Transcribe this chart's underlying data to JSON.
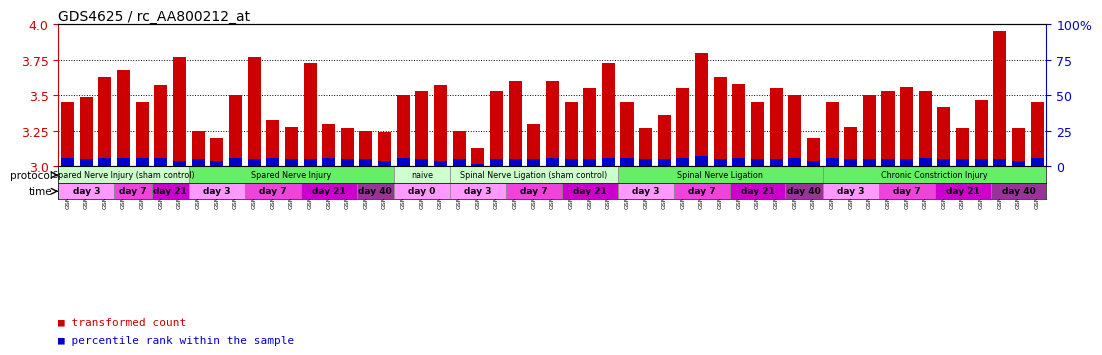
{
  "title": "GDS4625 / rc_AA800212_at",
  "sample_ids": [
    "GSM761261",
    "GSM761262",
    "GSM761264",
    "GSM761265",
    "GSM761266",
    "GSM761267",
    "GSM761268",
    "GSM761269",
    "GSM761250",
    "GSM761292",
    "GSM761253",
    "GSM761254",
    "GSM761255",
    "GSM761256",
    "GSM761257",
    "GSM761258",
    "GSM761259",
    "GSM761260",
    "GSM761246",
    "GSM761247",
    "GSM761248",
    "GSM761237",
    "GSM761238",
    "GSM761239",
    "GSM761240",
    "GSM761241",
    "GSM761242",
    "GSM761243",
    "GSM761244",
    "GSM761245",
    "GSM761226",
    "GSM761227",
    "GSM761228",
    "GSM761229",
    "GSM761230",
    "GSM761231",
    "GSM761232",
    "GSM761233",
    "GSM761234",
    "GSM761235",
    "GSM761236",
    "GSM761214",
    "GSM761215",
    "GSM761216",
    "GSM761217",
    "GSM761218",
    "GSM761219",
    "GSM761220",
    "GSM761221",
    "GSM761222",
    "GSM761223",
    "GSM761224",
    "GSM761225"
  ],
  "red_values": [
    3.45,
    3.49,
    3.63,
    3.68,
    3.45,
    3.57,
    3.77,
    3.25,
    3.2,
    3.5,
    3.77,
    3.33,
    3.28,
    3.73,
    3.3,
    3.27,
    3.25,
    3.24,
    3.5,
    3.53,
    3.57,
    3.25,
    3.13,
    3.53,
    3.6,
    3.3,
    3.6,
    3.45,
    3.55,
    3.73,
    3.45,
    3.27,
    3.36,
    3.55,
    3.8,
    3.63,
    3.58,
    3.45,
    3.55,
    3.5,
    3.2,
    3.45,
    3.28,
    3.5,
    3.53,
    3.56,
    3.53,
    3.42,
    3.27,
    3.47,
    3.95,
    3.27,
    3.45
  ],
  "blue_values": [
    0.06,
    0.05,
    0.06,
    0.06,
    0.06,
    0.06,
    0.04,
    0.05,
    0.04,
    0.06,
    0.05,
    0.06,
    0.05,
    0.05,
    0.06,
    0.05,
    0.05,
    0.04,
    0.06,
    0.05,
    0.04,
    0.05,
    0.02,
    0.05,
    0.05,
    0.05,
    0.06,
    0.05,
    0.05,
    0.06,
    0.06,
    0.05,
    0.05,
    0.06,
    0.07,
    0.05,
    0.06,
    0.05,
    0.05,
    0.06,
    0.04,
    0.06,
    0.05,
    0.05,
    0.05,
    0.05,
    0.06,
    0.05,
    0.05,
    0.05,
    0.05,
    0.04,
    0.06
  ],
  "ylim": [
    3.0,
    4.0
  ],
  "yticks": [
    3.0,
    3.25,
    3.5,
    3.75,
    4.0
  ],
  "right_yticks": [
    0,
    25,
    50,
    75,
    100
  ],
  "bar_color": "#CC0000",
  "blue_color": "#0000CC",
  "protocols": [
    {
      "label": "Spared Nerve Injury (sham control)",
      "start": 0,
      "end": 7,
      "color": "#ccffcc"
    },
    {
      "label": "Spared Nerve Injury",
      "start": 7,
      "end": 18,
      "color": "#66ee66"
    },
    {
      "label": "naive",
      "start": 18,
      "end": 21,
      "color": "#ccffcc"
    },
    {
      "label": "Spinal Nerve Ligation (sham control)",
      "start": 21,
      "end": 30,
      "color": "#ccffcc"
    },
    {
      "label": "Spinal Nerve Ligation",
      "start": 30,
      "end": 41,
      "color": "#66ee66"
    },
    {
      "label": "Chronic Constriction Injury",
      "start": 41,
      "end": 53,
      "color": "#66ee66"
    }
  ],
  "time_blocks": [
    {
      "start": 0,
      "end": 3,
      "label": "day 3",
      "color": "#ff99ff"
    },
    {
      "start": 3,
      "end": 5,
      "label": "day 7",
      "color": "#ee44dd"
    },
    {
      "start": 5,
      "end": 7,
      "label": "day 21",
      "color": "#cc00cc"
    },
    {
      "start": 7,
      "end": 10,
      "label": "day 3",
      "color": "#ff99ff"
    },
    {
      "start": 10,
      "end": 13,
      "label": "day 7",
      "color": "#ee44dd"
    },
    {
      "start": 13,
      "end": 16,
      "label": "day 21",
      "color": "#cc00cc"
    },
    {
      "start": 16,
      "end": 18,
      "label": "day 40",
      "color": "#993399"
    },
    {
      "start": 18,
      "end": 21,
      "label": "day 0",
      "color": "#ff99ff"
    },
    {
      "start": 21,
      "end": 24,
      "label": "day 3",
      "color": "#ff99ff"
    },
    {
      "start": 24,
      "end": 27,
      "label": "day 7",
      "color": "#ee44dd"
    },
    {
      "start": 27,
      "end": 30,
      "label": "day 21",
      "color": "#cc00cc"
    },
    {
      "start": 30,
      "end": 33,
      "label": "day 3",
      "color": "#ff99ff"
    },
    {
      "start": 33,
      "end": 36,
      "label": "day 7",
      "color": "#ee44dd"
    },
    {
      "start": 36,
      "end": 39,
      "label": "day 21",
      "color": "#cc00cc"
    },
    {
      "start": 39,
      "end": 41,
      "label": "day 40",
      "color": "#993399"
    },
    {
      "start": 41,
      "end": 44,
      "label": "day 3",
      "color": "#ff99ff"
    },
    {
      "start": 44,
      "end": 47,
      "label": "day 7",
      "color": "#ee44dd"
    },
    {
      "start": 47,
      "end": 50,
      "label": "day 21",
      "color": "#cc00cc"
    },
    {
      "start": 50,
      "end": 53,
      "label": "day 40",
      "color": "#993399"
    }
  ],
  "background_color": "#ffffff",
  "plot_bg": "#ffffff",
  "grid_color": "#000000",
  "axis_color_left": "#CC0000",
  "axis_color_right": "#0000CC",
  "legend_red": "transformed count",
  "legend_blue": "percentile rank within the sample"
}
